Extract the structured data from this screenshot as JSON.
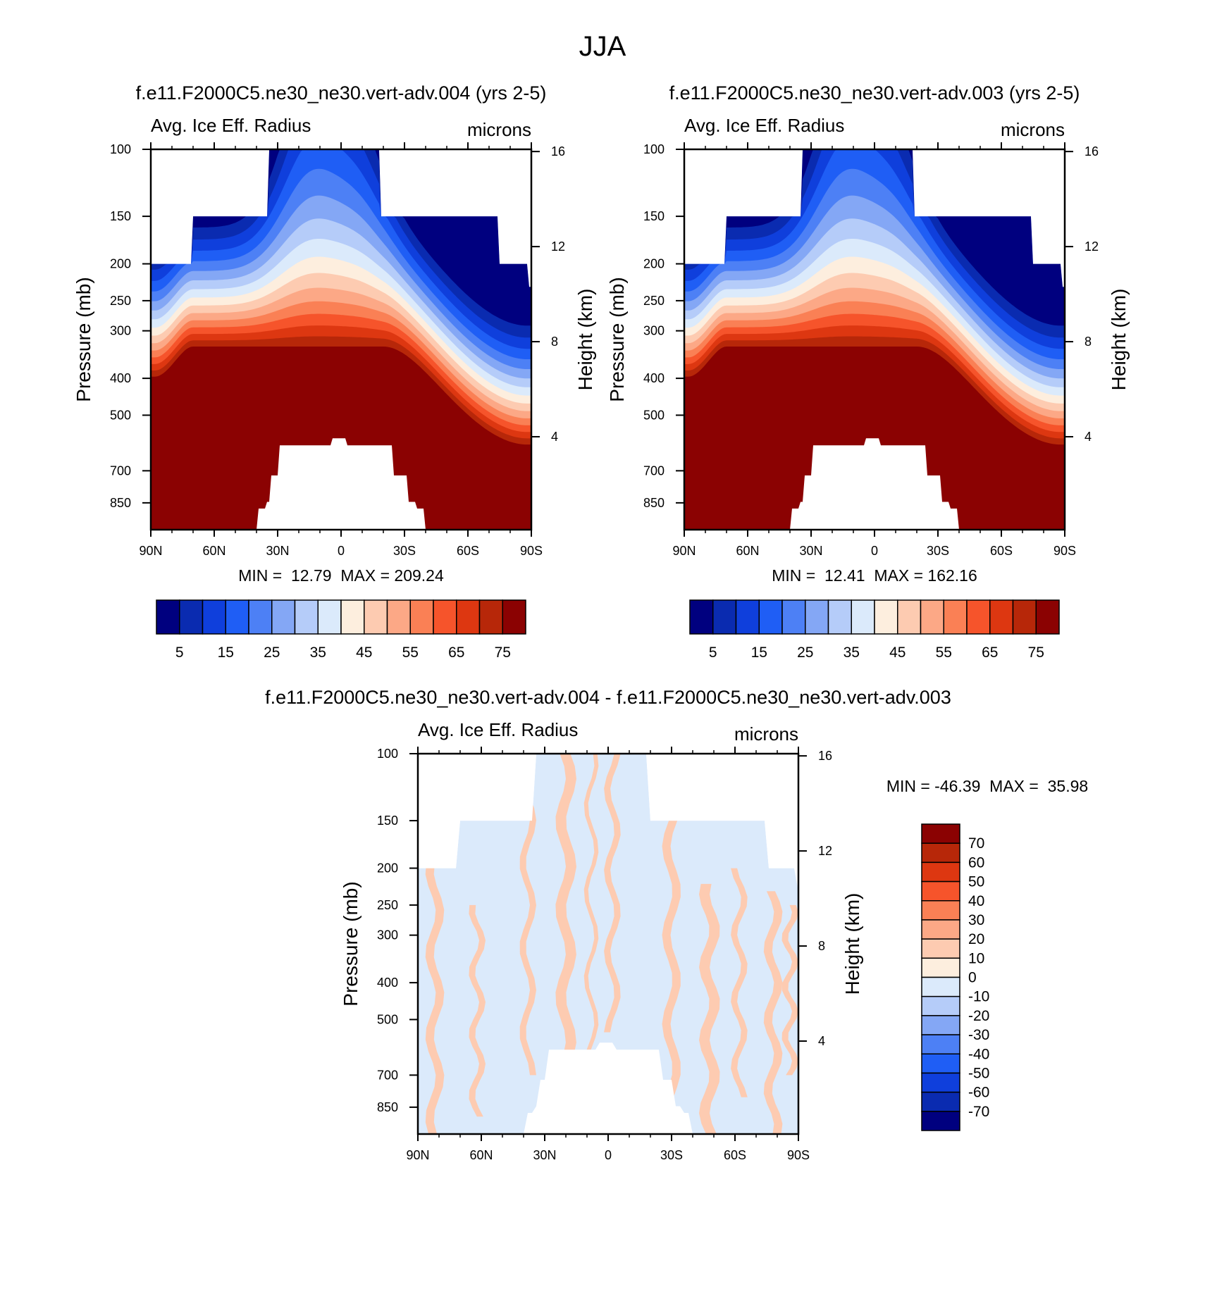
{
  "figure_title": "JJA",
  "chart_data": [
    {
      "type": "heatmap",
      "id": "p1",
      "title": "f.e11.F2000C5.ne30_ne30.vert-adv.004 (yrs 2-5)",
      "left_string": "Avg. Ice Eff. Radius",
      "right_string": "microns",
      "ylabel": "Pressure (mb)",
      "ylabel_right": "Height (km)",
      "x_ticks": [
        "90N",
        "60N",
        "30N",
        "0",
        "30S",
        "60S",
        "90S"
      ],
      "y_ticks": [
        "100",
        "150",
        "200",
        "250",
        "300",
        "400",
        "500",
        "700",
        "850"
      ],
      "y_ticks_right": [
        "16",
        "12",
        "8",
        "4"
      ],
      "xlim": [
        90,
        -90
      ],
      "ylim_mb": [
        100,
        1000
      ],
      "min_max": "MIN =  12.79  MAX = 209.24",
      "min": 12.79,
      "max": 209.24,
      "colorbar": {
        "orientation": "horizontal",
        "levels": [
          5,
          10,
          15,
          20,
          25,
          30,
          35,
          40,
          45,
          50,
          55,
          60,
          65,
          70,
          75
        ],
        "labels": [
          "5",
          "15",
          "25",
          "35",
          "45",
          "55",
          "65",
          "75"
        ],
        "colors": [
          "#00007f",
          "#0a2bb0",
          "#0f3fdc",
          "#1f5ef5",
          "#4d80f5",
          "#84a7f5",
          "#b5ccf9",
          "#dbeafb",
          "#fdeede",
          "#fdcbb1",
          "#fca886",
          "#fa8055",
          "#f6542b",
          "#dd3711",
          "#b72709",
          "#8b0202"
        ]
      }
    },
    {
      "type": "heatmap",
      "id": "p2",
      "title": "f.e11.F2000C5.ne30_ne30.vert-adv.003 (yrs 2-5)",
      "left_string": "Avg. Ice Eff. Radius",
      "right_string": "microns",
      "ylabel": "Pressure (mb)",
      "ylabel_right": "Height (km)",
      "x_ticks": [
        "90N",
        "60N",
        "30N",
        "0",
        "30S",
        "60S",
        "90S"
      ],
      "y_ticks": [
        "100",
        "150",
        "200",
        "250",
        "300",
        "400",
        "500",
        "700",
        "850"
      ],
      "y_ticks_right": [
        "16",
        "12",
        "8",
        "4"
      ],
      "xlim": [
        90,
        -90
      ],
      "ylim_mb": [
        100,
        1000
      ],
      "min_max": "MIN =  12.41  MAX = 162.16",
      "min": 12.41,
      "max": 162.16,
      "colorbar": {
        "orientation": "horizontal",
        "levels": [
          5,
          10,
          15,
          20,
          25,
          30,
          35,
          40,
          45,
          50,
          55,
          60,
          65,
          70,
          75
        ],
        "labels": [
          "5",
          "15",
          "25",
          "35",
          "45",
          "55",
          "65",
          "75"
        ],
        "colors": [
          "#00007f",
          "#0a2bb0",
          "#0f3fdc",
          "#1f5ef5",
          "#4d80f5",
          "#84a7f5",
          "#b5ccf9",
          "#dbeafb",
          "#fdeede",
          "#fdcbb1",
          "#fca886",
          "#fa8055",
          "#f6542b",
          "#dd3711",
          "#b72709",
          "#8b0202"
        ]
      }
    },
    {
      "type": "heatmap",
      "id": "p3",
      "title": "f.e11.F2000C5.ne30_ne30.vert-adv.004 - f.e11.F2000C5.ne30_ne30.vert-adv.003",
      "left_string": "Avg. Ice Eff. Radius",
      "right_string": "microns",
      "ylabel": "Pressure (mb)",
      "ylabel_right": "Height (km)",
      "x_ticks": [
        "90N",
        "60N",
        "30N",
        "0",
        "30S",
        "60S",
        "90S"
      ],
      "y_ticks": [
        "100",
        "150",
        "200",
        "250",
        "300",
        "400",
        "500",
        "700",
        "850"
      ],
      "y_ticks_right": [
        "16",
        "12",
        "8",
        "4"
      ],
      "xlim": [
        90,
        -90
      ],
      "ylim_mb": [
        100,
        1000
      ],
      "min_max": "MIN = -46.39  MAX =  35.98",
      "min": -46.39,
      "max": 35.98,
      "colorbar": {
        "orientation": "vertical",
        "levels": [
          -70,
          -60,
          -50,
          -40,
          -30,
          -20,
          -10,
          0,
          10,
          20,
          30,
          40,
          50,
          60,
          70
        ],
        "labels": [
          "70",
          "60",
          "50",
          "40",
          "30",
          "20",
          "10",
          "0",
          "-10",
          "-20",
          "-30",
          "-40",
          "-50",
          "-60",
          "-70"
        ],
        "colors": [
          "#8b0202",
          "#b72709",
          "#dd3711",
          "#f6542b",
          "#fa8055",
          "#fca886",
          "#fdcbb1",
          "#fdeede",
          "#dbeafb",
          "#b5ccf9",
          "#84a7f5",
          "#4d80f5",
          "#1f5ef5",
          "#0f3fdc",
          "#0a2bb0",
          "#00007f"
        ]
      }
    }
  ]
}
